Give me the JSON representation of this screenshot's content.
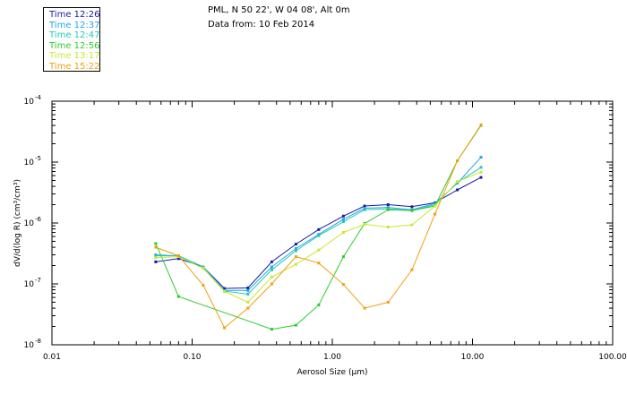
{
  "header": {
    "location": "PML, N 50 22', W 04 08', Alt 0m",
    "data_from": "Data from: 10 Feb 2014"
  },
  "legend": [
    {
      "label": "Time 12:26",
      "color": "#1a1aa8"
    },
    {
      "label": "Time 12:37",
      "color": "#1ea7e6"
    },
    {
      "label": "Time 12:47",
      "color": "#23c9b5"
    },
    {
      "label": "Time 12:56",
      "color": "#2ecc2e"
    },
    {
      "label": "Time 13:17",
      "color": "#c8e830"
    },
    {
      "label": "Time 15:22",
      "color": "#f0a010"
    }
  ],
  "chart_data": {
    "type": "line",
    "xlabel": "Aerosol Size (μm)",
    "ylabel": "dV/d(log R) (cm³/cm³)",
    "x_scale": "log",
    "y_scale": "log",
    "xlim": [
      0.01,
      100
    ],
    "ylim": [
      1e-08,
      0.0001
    ],
    "x_ticks": [
      {
        "value": 0.01,
        "label": "0.01"
      },
      {
        "value": 0.1,
        "label": "0.10"
      },
      {
        "value": 1,
        "label": "1.00"
      },
      {
        "value": 10,
        "label": "10.00"
      },
      {
        "value": 100,
        "label": "100.00"
      }
    ],
    "y_ticks": [
      {
        "value": 1e-08,
        "mant": "10",
        "exp": "-8"
      },
      {
        "value": 1e-07,
        "mant": "10",
        "exp": "-7"
      },
      {
        "value": 1e-06,
        "mant": "10",
        "exp": "-6"
      },
      {
        "value": 1e-05,
        "mant": "10",
        "exp": "-5"
      },
      {
        "value": 0.0001,
        "mant": "10",
        "exp": "-4"
      }
    ],
    "grid": false,
    "legend_position": "top-left",
    "series": [
      {
        "name": "Time 12:26",
        "color": "#1a1aa8",
        "x": [
          0.055,
          0.08,
          0.12,
          0.17,
          0.25,
          0.37,
          0.55,
          0.8,
          1.2,
          1.7,
          2.5,
          3.7,
          5.4,
          7.8,
          11.5
        ],
        "y": [
          2.3e-07,
          2.6e-07,
          1.9e-07,
          8.4e-08,
          8.6e-08,
          2.3e-07,
          4.5e-07,
          7.8e-07,
          1.3e-06,
          1.9e-06,
          2e-06,
          1.85e-06,
          2.15e-06,
          3.5e-06,
          5.6e-06
        ]
      },
      {
        "name": "Time 12:37",
        "color": "#1ea7e6",
        "x": [
          0.055,
          0.08,
          0.12,
          0.17,
          0.25,
          0.37,
          0.55,
          0.8,
          1.2,
          1.7,
          2.5,
          3.7,
          5.4,
          7.8,
          11.5
        ],
        "y": [
          3e-07,
          2.9e-07,
          1.9e-07,
          7.8e-08,
          7.8e-08,
          1.9e-07,
          3.8e-07,
          6.5e-07,
          1.15e-06,
          1.75e-06,
          1.8e-06,
          1.65e-06,
          2.1e-06,
          4.5e-06,
          1.2e-05
        ]
      },
      {
        "name": "Time 12:47",
        "color": "#23c9b5",
        "x": [
          0.055,
          0.08,
          0.12,
          0.17,
          0.25,
          0.37,
          0.55,
          0.8,
          1.2,
          1.7,
          2.5,
          3.7,
          5.4,
          7.8,
          11.5
        ],
        "y": [
          2.9e-07,
          2.9e-07,
          1.9e-07,
          7.6e-08,
          6.8e-08,
          1.7e-07,
          3.5e-07,
          6.2e-07,
          1.05e-06,
          1.65e-06,
          1.7e-06,
          1.6e-06,
          2e-06,
          4.6e-06,
          8.2e-06
        ]
      },
      {
        "name": "Time 12:56",
        "color": "#2ecc2e",
        "x": [
          0.055,
          0.08,
          0.37,
          0.55,
          0.8,
          1.2,
          1.7,
          2.5,
          3.7,
          5.4,
          7.8,
          11.5
        ],
        "y": [
          4.6e-07,
          6.2e-08,
          1.8e-08,
          2.1e-08,
          4.5e-08,
          2.8e-07,
          9.8e-07,
          1.65e-06,
          1.6e-06,
          1.9e-06,
          1.05e-05,
          4e-05
        ]
      },
      {
        "name": "Time 13:17",
        "color": "#c8e830",
        "x": [
          0.055,
          0.08,
          0.12,
          0.17,
          0.25,
          0.37,
          0.55,
          0.8,
          1.2,
          1.7,
          2.5,
          3.7,
          5.4,
          7.8,
          11.5
        ],
        "y": [
          2.7e-07,
          2.8e-07,
          1.8e-07,
          7.5e-08,
          5e-08,
          1.3e-07,
          2.1e-07,
          3.6e-07,
          7e-07,
          9.5e-07,
          8.6e-07,
          9.3e-07,
          1.9e-06,
          4.8e-06,
          6.8e-06
        ]
      },
      {
        "name": "Time 15:22",
        "color": "#f0a010",
        "x": [
          0.055,
          0.08,
          0.12,
          0.17,
          0.25,
          0.37,
          0.55,
          0.8,
          1.2,
          1.7,
          2.5,
          3.7,
          5.4,
          7.8,
          11.5
        ],
        "y": [
          4e-07,
          2.9e-07,
          9.5e-08,
          1.9e-08,
          4e-08,
          1e-07,
          2.8e-07,
          2.2e-07,
          9.8e-08,
          4e-08,
          5e-08,
          1.7e-07,
          1.4e-06,
          1.05e-05,
          4.1e-05
        ]
      }
    ]
  }
}
